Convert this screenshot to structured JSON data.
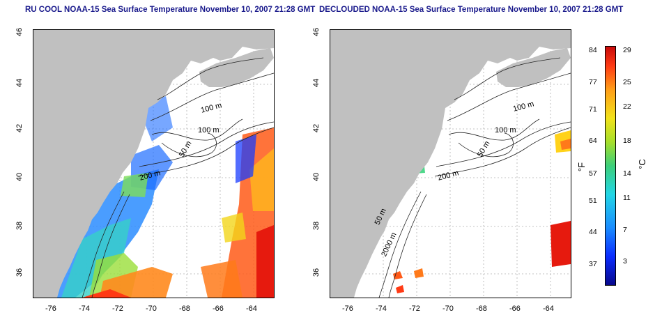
{
  "titles": {
    "left": "RU COOL NOAA-15 Sea Surface Temperature November 10, 2007 21:28 GMT",
    "right": "DECLOUDED NOAA-15 Sea Surface Temperature November 10, 2007 21:28 GMT"
  },
  "map": {
    "x_ticks": [
      "-76",
      "-74",
      "-72",
      "-70",
      "-68",
      "-66",
      "-64"
    ],
    "y_ticks": [
      "46",
      "44",
      "42",
      "40",
      "38",
      "36"
    ],
    "land_color": "#c0c0c0",
    "contour_labels": [
      "100 m",
      "100 m",
      "50 m",
      "200 m",
      "50 m",
      "2000 m"
    ]
  },
  "colorbar": {
    "fahrenheit": [
      "84",
      "77",
      "71",
      "64",
      "57",
      "51",
      "44",
      "37"
    ],
    "celsius": [
      "29",
      "25",
      "22",
      "18",
      "14",
      "11",
      "7",
      "3"
    ],
    "unit_f": "°F",
    "unit_c": "°C"
  }
}
